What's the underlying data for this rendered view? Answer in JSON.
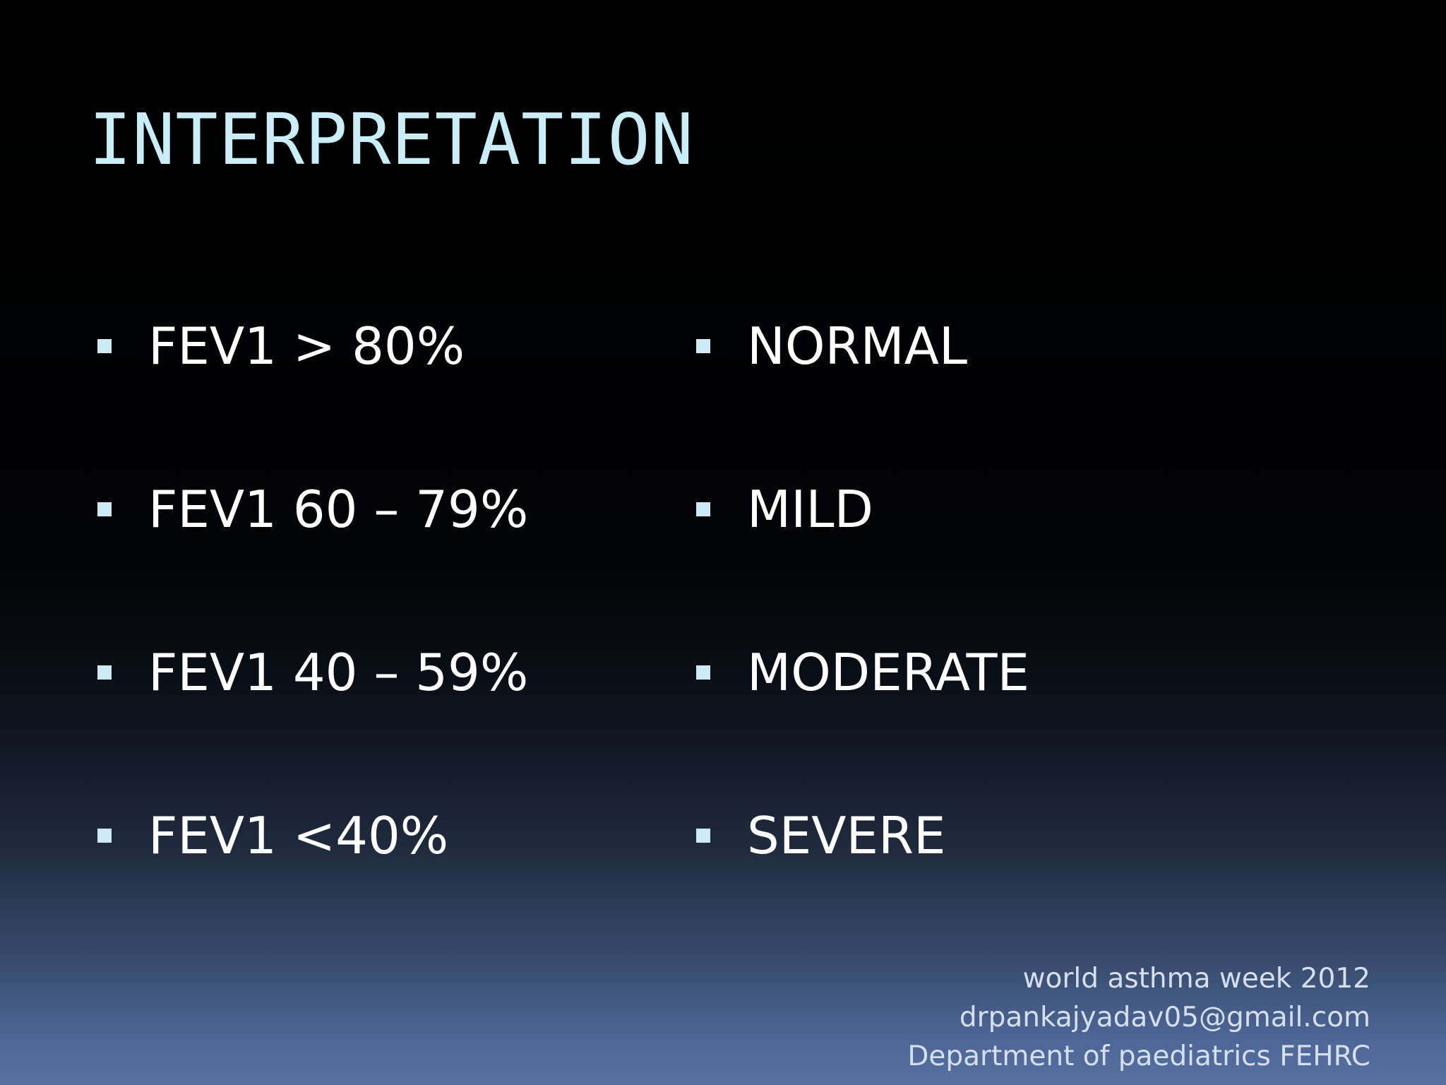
{
  "slide": {
    "title": "INTERPRETATION",
    "rows": [
      {
        "measure": "FEV1 > 80%",
        "severity": "NORMAL"
      },
      {
        "measure": "FEV1 60 – 79%",
        "severity": "MILD"
      },
      {
        "measure": "FEV1 40 – 59%",
        "severity": "MODERATE"
      },
      {
        "measure": "FEV1 <40%",
        "severity": "SEVERE"
      }
    ],
    "footer": {
      "line1": "world asthma week 2012",
      "line2": "drpankajyadav05@gmail.com",
      "line3": "Department of paediatrics FEHRC"
    }
  },
  "colors": {
    "title": "#c9eef8",
    "bullet_marker": "#cdeaf6",
    "body_text": "#ffffff",
    "footer_text": "#d6dff0",
    "background_top": "#000000",
    "background_bottom": "#56709f"
  }
}
